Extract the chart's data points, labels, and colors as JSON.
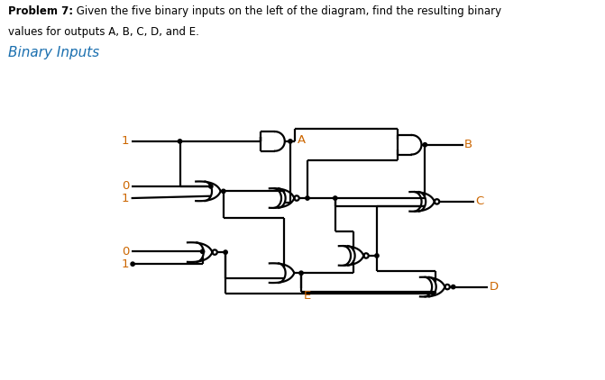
{
  "bg_color": "#ffffff",
  "text_color": "#000000",
  "label_color": "#cc6600",
  "section_color": "#1a6faf",
  "lw": 1.6,
  "dot_r": 2.8,
  "bubble_r": 3.5,
  "title_bold": "Problem 7:",
  "title_rest": " Given the five binary inputs on the left of the diagram, find the resulting binary",
  "title_line2": "values for outputs A, B, C, D, and E.",
  "section_label": "Binary Inputs",
  "inputs": [
    "1",
    "0",
    "1",
    "0",
    "1"
  ],
  "output_labels": [
    "A",
    "B",
    "C",
    "D",
    "E"
  ]
}
